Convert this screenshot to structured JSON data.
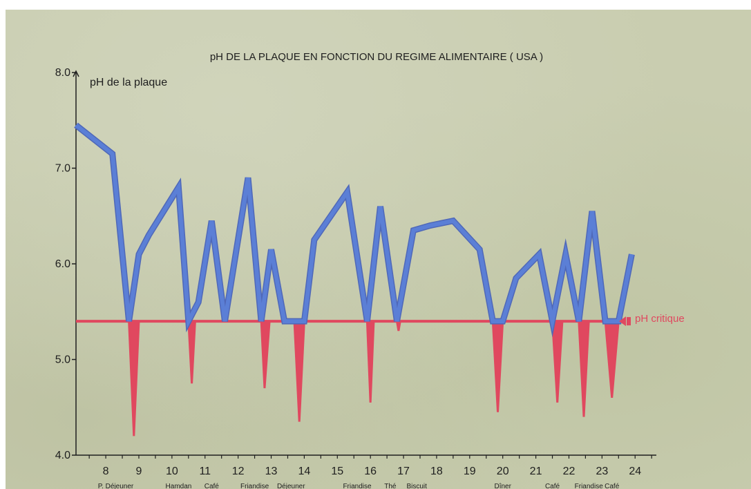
{
  "chart_data": {
    "type": "line",
    "title": "pH DE LA PLAQUE EN FONCTION DU REGIME ALIMENTAIRE ( USA )",
    "ylabel": "pH de la plaque",
    "xlabel": "",
    "ylim": [
      4.0,
      8.0
    ],
    "xlim": [
      7.1,
      26.0
    ],
    "yticks": [
      "4.0",
      "5.0",
      "6.0",
      "7.0",
      "8.0"
    ],
    "xticks": [
      "8",
      "9",
      "10",
      "11",
      "12",
      "13",
      "14",
      "15",
      "16",
      "17",
      "18",
      "19",
      "20",
      "21",
      "22",
      "23",
      "24"
    ],
    "grid": false,
    "critical_ph": 5.4,
    "critical_label": "pH critique",
    "meal_labels": [
      {
        "x": 8.3,
        "text": "P. Déjeuner"
      },
      {
        "x": 10.2,
        "text": "Hamdan"
      },
      {
        "x": 11.2,
        "text": "Café"
      },
      {
        "x": 12.5,
        "text": "Friandise"
      },
      {
        "x": 13.6,
        "text": "Déjeuner"
      },
      {
        "x": 15.6,
        "text": "Friandise"
      },
      {
        "x": 16.6,
        "text": "Thé"
      },
      {
        "x": 17.4,
        "text": "Biscuit"
      },
      {
        "x": 20.0,
        "text": "Dîner"
      },
      {
        "x": 21.5,
        "text": "Café"
      },
      {
        "x": 22.6,
        "text": "Friandise"
      },
      {
        "x": 23.3,
        "text": "Café"
      }
    ],
    "series": [
      {
        "color": "#5b7fd6",
        "x": [
          7.1,
          8.2,
          8.7,
          9.0,
          9.3,
          10.2,
          10.5,
          10.8,
          11.2,
          11.6,
          12.3,
          12.7,
          13.0,
          13.4,
          13.7,
          14.0,
          14.3,
          15.3,
          15.9,
          16.3,
          16.8,
          17.3,
          17.8,
          18.5,
          19.3,
          19.7,
          20.0,
          20.4,
          21.1,
          21.5,
          21.9,
          22.3,
          22.7,
          23.1,
          23.5,
          23.9
        ],
        "y": [
          7.45,
          7.15,
          5.4,
          6.1,
          6.3,
          6.8,
          5.4,
          5.6,
          6.45,
          5.4,
          6.9,
          5.4,
          6.15,
          5.4,
          5.4,
          5.4,
          6.25,
          6.75,
          5.4,
          6.6,
          5.4,
          6.35,
          6.4,
          6.45,
          6.15,
          5.4,
          5.4,
          5.85,
          6.1,
          5.4,
          6.1,
          5.4,
          6.55,
          5.4,
          5.4,
          6.1
        ]
      },
      {
        "color": "#e0485f",
        "x": [
          8.7,
          8.85,
          9.0,
          10.5,
          10.6,
          10.7,
          12.7,
          12.8,
          12.95,
          13.7,
          13.85,
          14.0,
          15.9,
          16.0,
          16.1,
          16.8,
          16.85,
          16.9,
          19.7,
          19.85,
          20.0,
          21.5,
          21.65,
          21.8,
          22.3,
          22.45,
          22.6,
          23.1,
          23.3,
          23.5
        ],
        "y": [
          5.4,
          4.2,
          5.4,
          5.4,
          4.75,
          5.4,
          5.4,
          4.7,
          5.4,
          5.4,
          4.35,
          5.4,
          5.4,
          4.55,
          5.4,
          5.4,
          5.3,
          5.4,
          5.4,
          4.45,
          5.4,
          5.4,
          4.55,
          5.4,
          5.4,
          4.4,
          5.4,
          5.4,
          4.6,
          5.4
        ]
      }
    ]
  }
}
